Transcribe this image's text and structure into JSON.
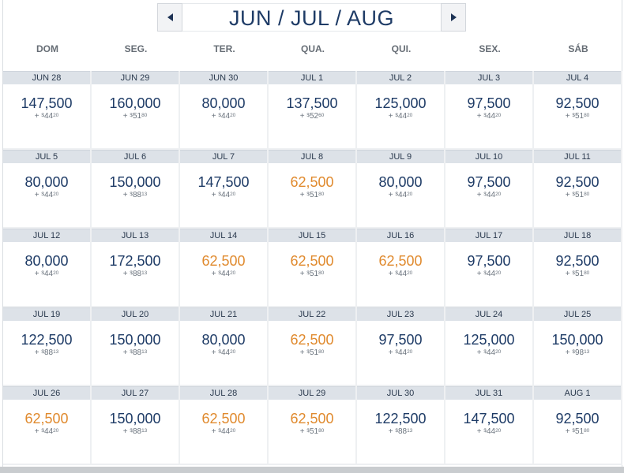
{
  "header": {
    "title": "JUN / JUL / AUG",
    "prev_icon": "triangle-left",
    "next_icon": "triangle-right"
  },
  "weekdays": [
    "DOM",
    "SEG.",
    "TER.",
    "QUA.",
    "QUI.",
    "SEX.",
    "SÁB"
  ],
  "colors": {
    "regular": "#1e3b66",
    "lowest": "#e08a2e"
  },
  "weeks": [
    [
      {
        "date": "JUN 28",
        "miles": "147,500",
        "plus": "+",
        "cur": "$",
        "tax": "44",
        "cents": "20",
        "low": false
      },
      {
        "date": "JUN 29",
        "miles": "160,000",
        "plus": "+",
        "cur": "$",
        "tax": "51",
        "cents": "80",
        "low": false
      },
      {
        "date": "JUN 30",
        "miles": "80,000",
        "plus": "+",
        "cur": "$",
        "tax": "44",
        "cents": "20",
        "low": false
      },
      {
        "date": "JUL 1",
        "miles": "137,500",
        "plus": "+",
        "cur": "$",
        "tax": "52",
        "cents": "60",
        "low": false
      },
      {
        "date": "JUL 2",
        "miles": "125,000",
        "plus": "+",
        "cur": "$",
        "tax": "44",
        "cents": "20",
        "low": false
      },
      {
        "date": "JUL 3",
        "miles": "97,500",
        "plus": "+",
        "cur": "$",
        "tax": "44",
        "cents": "20",
        "low": false
      },
      {
        "date": "JUL 4",
        "miles": "92,500",
        "plus": "+",
        "cur": "$",
        "tax": "51",
        "cents": "80",
        "low": false
      }
    ],
    [
      {
        "date": "JUL 5",
        "miles": "80,000",
        "plus": "+",
        "cur": "$",
        "tax": "44",
        "cents": "20",
        "low": false
      },
      {
        "date": "JUL 6",
        "miles": "150,000",
        "plus": "+",
        "cur": "$",
        "tax": "88",
        "cents": "13",
        "low": false
      },
      {
        "date": "JUL 7",
        "miles": "147,500",
        "plus": "+",
        "cur": "$",
        "tax": "44",
        "cents": "20",
        "low": false
      },
      {
        "date": "JUL 8",
        "miles": "62,500",
        "plus": "+",
        "cur": "$",
        "tax": "51",
        "cents": "80",
        "low": true
      },
      {
        "date": "JUL 9",
        "miles": "80,000",
        "plus": "+",
        "cur": "$",
        "tax": "44",
        "cents": "20",
        "low": false
      },
      {
        "date": "JUL 10",
        "miles": "97,500",
        "plus": "+",
        "cur": "$",
        "tax": "44",
        "cents": "20",
        "low": false
      },
      {
        "date": "JUL 11",
        "miles": "92,500",
        "plus": "+",
        "cur": "$",
        "tax": "51",
        "cents": "80",
        "low": false
      }
    ],
    [
      {
        "date": "JUL 12",
        "miles": "80,000",
        "plus": "+",
        "cur": "$",
        "tax": "44",
        "cents": "20",
        "low": false
      },
      {
        "date": "JUL 13",
        "miles": "172,500",
        "plus": "+",
        "cur": "$",
        "tax": "88",
        "cents": "13",
        "low": false
      },
      {
        "date": "JUL 14",
        "miles": "62,500",
        "plus": "+",
        "cur": "$",
        "tax": "44",
        "cents": "20",
        "low": true
      },
      {
        "date": "JUL 15",
        "miles": "62,500",
        "plus": "+",
        "cur": "$",
        "tax": "51",
        "cents": "80",
        "low": true
      },
      {
        "date": "JUL 16",
        "miles": "62,500",
        "plus": "+",
        "cur": "$",
        "tax": "44",
        "cents": "20",
        "low": true
      },
      {
        "date": "JUL 17",
        "miles": "97,500",
        "plus": "+",
        "cur": "$",
        "tax": "44",
        "cents": "20",
        "low": false
      },
      {
        "date": "JUL 18",
        "miles": "92,500",
        "plus": "+",
        "cur": "$",
        "tax": "51",
        "cents": "80",
        "low": false
      }
    ],
    [
      {
        "date": "JUL 19",
        "miles": "122,500",
        "plus": "+",
        "cur": "$",
        "tax": "88",
        "cents": "13",
        "low": false
      },
      {
        "date": "JUL 20",
        "miles": "150,000",
        "plus": "+",
        "cur": "$",
        "tax": "88",
        "cents": "13",
        "low": false
      },
      {
        "date": "JUL 21",
        "miles": "80,000",
        "plus": "+",
        "cur": "$",
        "tax": "44",
        "cents": "20",
        "low": false
      },
      {
        "date": "JUL 22",
        "miles": "62,500",
        "plus": "+",
        "cur": "$",
        "tax": "51",
        "cents": "80",
        "low": true
      },
      {
        "date": "JUL 23",
        "miles": "97,500",
        "plus": "+",
        "cur": "$",
        "tax": "44",
        "cents": "20",
        "low": false
      },
      {
        "date": "JUL 24",
        "miles": "125,000",
        "plus": "+",
        "cur": "$",
        "tax": "44",
        "cents": "20",
        "low": false
      },
      {
        "date": "JUL 25",
        "miles": "150,000",
        "plus": "+",
        "cur": "$",
        "tax": "98",
        "cents": "13",
        "low": false
      }
    ],
    [
      {
        "date": "JUL 26",
        "miles": "62,500",
        "plus": "+",
        "cur": "$",
        "tax": "44",
        "cents": "20",
        "low": true
      },
      {
        "date": "JUL 27",
        "miles": "150,000",
        "plus": "+",
        "cur": "$",
        "tax": "88",
        "cents": "13",
        "low": false
      },
      {
        "date": "JUL 28",
        "miles": "62,500",
        "plus": "+",
        "cur": "$",
        "tax": "44",
        "cents": "20",
        "low": true
      },
      {
        "date": "JUL 29",
        "miles": "62,500",
        "plus": "+",
        "cur": "$",
        "tax": "51",
        "cents": "80",
        "low": true
      },
      {
        "date": "JUL 30",
        "miles": "122,500",
        "plus": "+",
        "cur": "$",
        "tax": "88",
        "cents": "13",
        "low": false
      },
      {
        "date": "JUL 31",
        "miles": "147,500",
        "plus": "+",
        "cur": "$",
        "tax": "44",
        "cents": "20",
        "low": false
      },
      {
        "date": "AUG 1",
        "miles": "92,500",
        "plus": "+",
        "cur": "$",
        "tax": "51",
        "cents": "80",
        "low": false
      }
    ]
  ]
}
